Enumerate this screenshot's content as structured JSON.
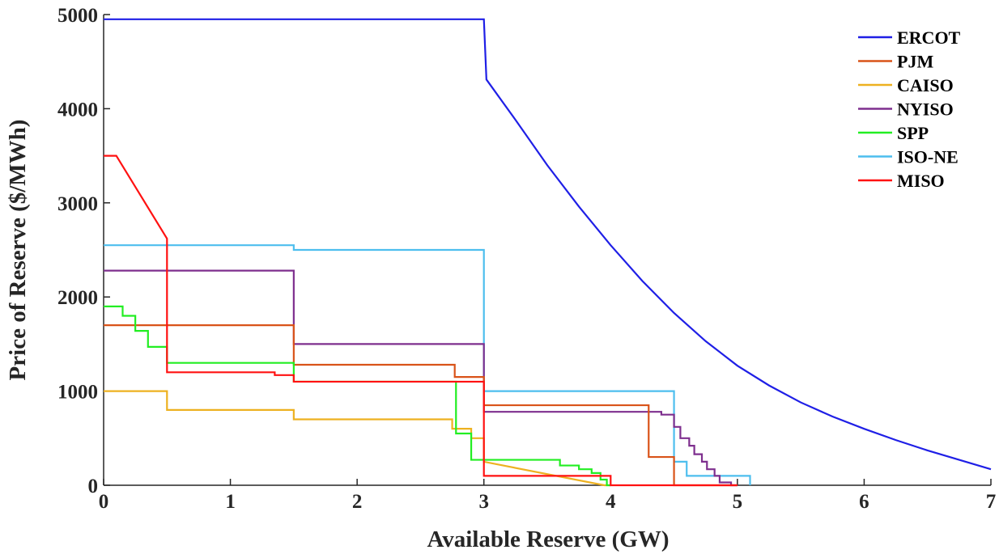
{
  "chart_data": {
    "type": "line",
    "xlabel": "Available Reserve (GW)",
    "ylabel": "Price of Reserve ($/MWh)",
    "xlim": [
      0,
      7
    ],
    "ylim": [
      0,
      5000
    ],
    "xticks": [
      0,
      1,
      2,
      3,
      4,
      5,
      6,
      7
    ],
    "yticks": [
      0,
      1000,
      2000,
      3000,
      4000,
      5000
    ],
    "grid": false,
    "legend_position": "top-right",
    "series": [
      {
        "name": "ERCOT",
        "color": "#1f1fe6",
        "points": [
          [
            0,
            4950
          ],
          [
            3,
            4950
          ],
          [
            3.02,
            4310
          ],
          [
            3.25,
            3880
          ],
          [
            3.5,
            3400
          ],
          [
            3.75,
            2960
          ],
          [
            4,
            2550
          ],
          [
            4.25,
            2170
          ],
          [
            4.5,
            1830
          ],
          [
            4.75,
            1530
          ],
          [
            5,
            1270
          ],
          [
            5.25,
            1060
          ],
          [
            5.5,
            880
          ],
          [
            5.75,
            730
          ],
          [
            6,
            600
          ],
          [
            6.25,
            480
          ],
          [
            6.5,
            370
          ],
          [
            6.75,
            270
          ],
          [
            7,
            170
          ]
        ]
      },
      {
        "name": "PJM",
        "color": "#d95319",
        "points": [
          [
            0,
            1700
          ],
          [
            1.5,
            1700
          ],
          [
            1.5,
            1280
          ],
          [
            2.77,
            1280
          ],
          [
            2.77,
            1150
          ],
          [
            3,
            1150
          ],
          [
            3,
            850
          ],
          [
            4.3,
            850
          ],
          [
            4.3,
            300
          ],
          [
            4.5,
            300
          ],
          [
            4.5,
            0
          ],
          [
            5,
            0
          ]
        ]
      },
      {
        "name": "CAISO",
        "color": "#edb120",
        "points": [
          [
            0,
            1000
          ],
          [
            0.5,
            1000
          ],
          [
            0.5,
            800
          ],
          [
            1.5,
            800
          ],
          [
            1.5,
            700
          ],
          [
            2.75,
            700
          ],
          [
            2.75,
            600
          ],
          [
            2.9,
            600
          ],
          [
            2.9,
            500
          ],
          [
            3,
            500
          ],
          [
            3,
            250
          ],
          [
            3.95,
            0
          ],
          [
            4,
            0
          ]
        ]
      },
      {
        "name": "NYISO",
        "color": "#7e2f8e",
        "points": [
          [
            0,
            2280
          ],
          [
            1.5,
            2280
          ],
          [
            1.5,
            1500
          ],
          [
            3,
            1500
          ],
          [
            3,
            780
          ],
          [
            4.4,
            780
          ],
          [
            4.4,
            750
          ],
          [
            4.5,
            750
          ],
          [
            4.5,
            620
          ],
          [
            4.55,
            620
          ],
          [
            4.55,
            500
          ],
          [
            4.62,
            500
          ],
          [
            4.62,
            420
          ],
          [
            4.66,
            420
          ],
          [
            4.66,
            330
          ],
          [
            4.72,
            330
          ],
          [
            4.72,
            250
          ],
          [
            4.76,
            250
          ],
          [
            4.76,
            170
          ],
          [
            4.82,
            170
          ],
          [
            4.82,
            100
          ],
          [
            4.86,
            100
          ],
          [
            4.86,
            30
          ],
          [
            4.95,
            30
          ],
          [
            4.95,
            0
          ],
          [
            5,
            0
          ]
        ]
      },
      {
        "name": "SPP",
        "color": "#22ee22",
        "points": [
          [
            0,
            1900
          ],
          [
            0.15,
            1900
          ],
          [
            0.15,
            1800
          ],
          [
            0.25,
            1800
          ],
          [
            0.25,
            1640
          ],
          [
            0.35,
            1640
          ],
          [
            0.35,
            1470
          ],
          [
            0.5,
            1470
          ],
          [
            0.5,
            1300
          ],
          [
            1.5,
            1300
          ],
          [
            1.5,
            1100
          ],
          [
            2.78,
            1100
          ],
          [
            2.78,
            550
          ],
          [
            2.9,
            550
          ],
          [
            2.9,
            270
          ],
          [
            3.6,
            270
          ],
          [
            3.6,
            210
          ],
          [
            3.75,
            210
          ],
          [
            3.75,
            170
          ],
          [
            3.85,
            170
          ],
          [
            3.85,
            130
          ],
          [
            3.92,
            130
          ],
          [
            3.92,
            60
          ],
          [
            3.97,
            60
          ],
          [
            3.97,
            0
          ],
          [
            4,
            0
          ]
        ]
      },
      {
        "name": "ISO-NE",
        "color": "#4dbeee",
        "points": [
          [
            0,
            2550
          ],
          [
            1.5,
            2550
          ],
          [
            1.5,
            2500
          ],
          [
            3,
            2500
          ],
          [
            3,
            1000
          ],
          [
            4.5,
            1000
          ],
          [
            4.5,
            250
          ],
          [
            4.6,
            250
          ],
          [
            4.6,
            100
          ],
          [
            5.1,
            100
          ],
          [
            5.1,
            0
          ]
        ]
      },
      {
        "name": "MISO",
        "color": "#ff1111",
        "points": [
          [
            0,
            3500
          ],
          [
            0.1,
            3500
          ],
          [
            0.5,
            2620
          ],
          [
            0.5,
            1200
          ],
          [
            1.35,
            1200
          ],
          [
            1.35,
            1170
          ],
          [
            1.5,
            1170
          ],
          [
            1.5,
            1100
          ],
          [
            3,
            1100
          ],
          [
            3,
            100
          ],
          [
            4,
            100
          ],
          [
            4,
            0
          ],
          [
            5,
            0
          ]
        ]
      }
    ]
  }
}
